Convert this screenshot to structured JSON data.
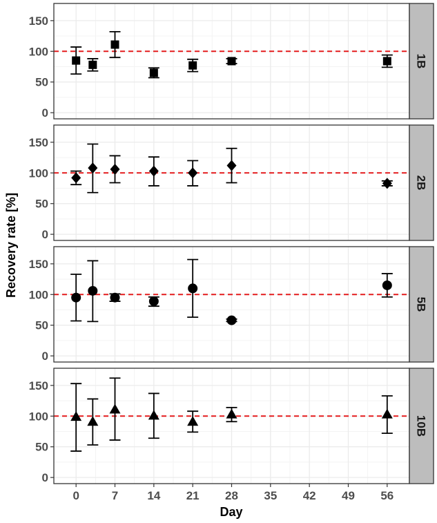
{
  "chart_data": {
    "type": "scatter",
    "xlabel": "Day",
    "ylabel": "Recovery rate [%]",
    "x_ticks": [
      0,
      7,
      14,
      21,
      28,
      35,
      42,
      49,
      56
    ],
    "xlim": [
      -4,
      60
    ],
    "y_ticks": [
      0,
      50,
      100,
      150
    ],
    "ylim": [
      -10,
      178
    ],
    "reference_line": {
      "y": 100,
      "color": "#e41a1c",
      "style": "dashed"
    },
    "grid": true,
    "colors": {
      "points": "#000000",
      "strip_fill": "#bdbdbd",
      "panel_border": "#333333",
      "grid": "#ebebeb"
    },
    "panels": [
      {
        "label": "1B",
        "marker": "square",
        "points": [
          {
            "x": 0,
            "y": 85,
            "ymin": 63,
            "ymax": 107
          },
          {
            "x": 3,
            "y": 78,
            "ymin": 68,
            "ymax": 88
          },
          {
            "x": 7,
            "y": 111,
            "ymin": 90,
            "ymax": 132
          },
          {
            "x": 14,
            "y": 65,
            "ymin": 57,
            "ymax": 73
          },
          {
            "x": 21,
            "y": 77,
            "ymin": 67,
            "ymax": 87
          },
          {
            "x": 28,
            "y": 84,
            "ymin": 80,
            "ymax": 88
          },
          {
            "x": 56,
            "y": 84,
            "ymin": 74,
            "ymax": 94
          }
        ]
      },
      {
        "label": "2B",
        "marker": "diamond",
        "points": [
          {
            "x": 0,
            "y": 92,
            "ymin": 81,
            "ymax": 103
          },
          {
            "x": 3,
            "y": 108,
            "ymin": 68,
            "ymax": 147
          },
          {
            "x": 7,
            "y": 106,
            "ymin": 84,
            "ymax": 128
          },
          {
            "x": 14,
            "y": 103,
            "ymin": 79,
            "ymax": 126
          },
          {
            "x": 21,
            "y": 100,
            "ymin": 79,
            "ymax": 120
          },
          {
            "x": 28,
            "y": 112,
            "ymin": 84,
            "ymax": 140
          },
          {
            "x": 56,
            "y": 83,
            "ymin": 79,
            "ymax": 87
          }
        ]
      },
      {
        "label": "5B",
        "marker": "circle",
        "points": [
          {
            "x": 0,
            "y": 95,
            "ymin": 57,
            "ymax": 133
          },
          {
            "x": 3,
            "y": 106,
            "ymin": 56,
            "ymax": 155
          },
          {
            "x": 7,
            "y": 95,
            "ymin": 89,
            "ymax": 101
          },
          {
            "x": 14,
            "y": 89,
            "ymin": 81,
            "ymax": 96
          },
          {
            "x": 21,
            "y": 110,
            "ymin": 63,
            "ymax": 157
          },
          {
            "x": 28,
            "y": 58,
            "ymin": 56,
            "ymax": 60
          },
          {
            "x": 56,
            "y": 115,
            "ymin": 96,
            "ymax": 134
          }
        ]
      },
      {
        "label": "10B",
        "marker": "triangle",
        "points": [
          {
            "x": 0,
            "y": 99,
            "ymin": 43,
            "ymax": 153
          },
          {
            "x": 3,
            "y": 91,
            "ymin": 53,
            "ymax": 128
          },
          {
            "x": 7,
            "y": 111,
            "ymin": 61,
            "ymax": 162
          },
          {
            "x": 14,
            "y": 101,
            "ymin": 64,
            "ymax": 137
          },
          {
            "x": 21,
            "y": 91,
            "ymin": 74,
            "ymax": 108
          },
          {
            "x": 28,
            "y": 103,
            "ymin": 91,
            "ymax": 114
          },
          {
            "x": 56,
            "y": 103,
            "ymin": 72,
            "ymax": 133
          }
        ]
      }
    ]
  }
}
